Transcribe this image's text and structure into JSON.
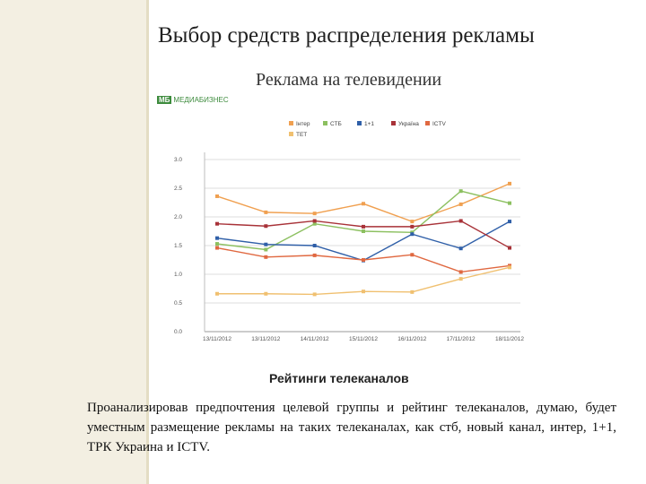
{
  "slide": {
    "title": "Выбор средств распределения рекламы",
    "subtitle": "Реклама на телевидении",
    "logo_badge": "МБ",
    "logo_text": "МЕДИАБИЗНЕС",
    "body_text": "Проанализировав предпочтения целевой группы и рейтинг телеканалов, думаю, будет уместным размещение рекламы на таких телеканалах, как стб, новый канал, интер, 1+1, ТРК Украина и ICTV."
  },
  "chart_data": {
    "type": "line",
    "title": "Рейтинги телеканалов",
    "x": [
      "13/11/2012",
      "13/11/2012",
      "14/11/2012",
      "15/11/2012",
      "16/11/2012",
      "17/11/2012",
      "18/11/2012"
    ],
    "ylim": [
      0.0,
      3.0
    ],
    "yticks": [
      "0.0",
      "0.5",
      "1.0",
      "1.5",
      "2.0",
      "2.5",
      "3.0"
    ],
    "grid": true,
    "legend_position": "top",
    "series": [
      {
        "name": "Інтер",
        "color": "#f0a050",
        "values": [
          2.36,
          2.08,
          2.06,
          2.23,
          1.92,
          2.22,
          2.58
        ]
      },
      {
        "name": "СТБ",
        "color": "#8cc060",
        "values": [
          1.53,
          1.43,
          1.88,
          1.75,
          1.73,
          2.45,
          2.24
        ]
      },
      {
        "name": "1+1",
        "color": "#2f5fa8",
        "values": [
          1.63,
          1.52,
          1.5,
          1.24,
          1.7,
          1.45,
          1.92
        ]
      },
      {
        "name": "Україна",
        "color": "#a83238",
        "values": [
          1.88,
          1.84,
          1.93,
          1.83,
          1.83,
          1.93,
          1.46
        ]
      },
      {
        "name": "ICTV",
        "color": "#e06840",
        "values": [
          1.46,
          1.3,
          1.33,
          1.25,
          1.34,
          1.04,
          1.15
        ]
      },
      {
        "name": "ТЕТ",
        "color": "#f0c070",
        "values": [
          0.66,
          0.66,
          0.65,
          0.7,
          0.69,
          0.92,
          1.12
        ]
      }
    ]
  }
}
